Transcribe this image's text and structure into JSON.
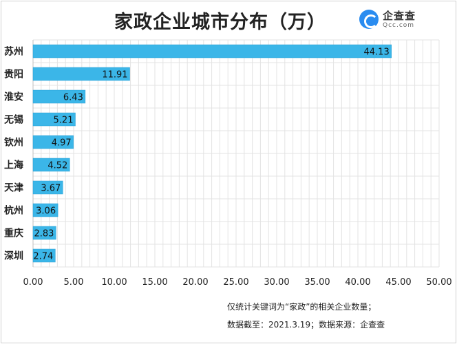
{
  "chart_data": {
    "type": "bar",
    "orientation": "horizontal",
    "title": "家政企业城市分布（万）",
    "categories": [
      "苏州",
      "贵阳",
      "淮安",
      "无锡",
      "钦州",
      "上海",
      "天津",
      "杭州",
      "重庆",
      "深圳"
    ],
    "values": [
      44.13,
      11.91,
      6.43,
      5.21,
      4.97,
      4.52,
      3.67,
      3.06,
      2.83,
      2.74
    ],
    "value_labels": [
      "44.13",
      "11.91",
      "6.43",
      "5.21",
      "4.97",
      "4.52",
      "3.67",
      "3.06",
      "2.83",
      "2.74"
    ],
    "xlim": [
      0,
      50
    ],
    "xticks": [
      "0.00",
      "5.00",
      "10.00",
      "15.00",
      "20.00",
      "25.00",
      "30.00",
      "35.00",
      "40.00",
      "45.00",
      "50.00"
    ],
    "grid": true,
    "legend": "none"
  },
  "colors": {
    "bar": "#3bb6e8",
    "bar_edge": "#2a9fd4",
    "grid": "#e3e3e3",
    "axis": "#bfbfbf"
  },
  "logo": {
    "name": "企查查",
    "domain": "Qcc.com",
    "icon": "qcc-logo-icon"
  },
  "notes": {
    "line1": "仅统计关键词为“家政”的相关企业数量；",
    "line2": "数据截至：2021.3.19；数据来源：企查查"
  }
}
